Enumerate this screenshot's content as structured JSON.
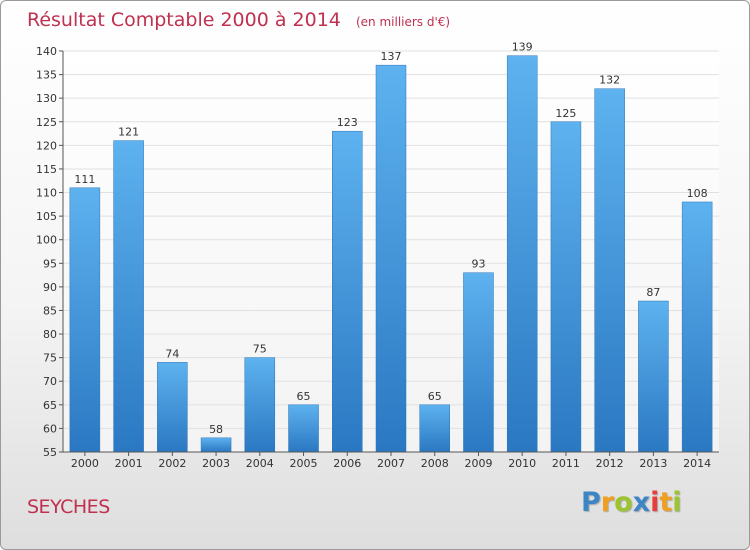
{
  "chart_data": {
    "type": "bar",
    "title": "Résultat Comptable 2000 à 2014",
    "unit": "(en milliers d'€)",
    "categories": [
      "2000",
      "2001",
      "2002",
      "2003",
      "2004",
      "2005",
      "2006",
      "2007",
      "2008",
      "2009",
      "2010",
      "2011",
      "2012",
      "2013",
      "2014"
    ],
    "values": [
      111,
      121,
      74,
      58,
      75,
      65,
      123,
      137,
      65,
      93,
      139,
      125,
      132,
      87,
      108
    ],
    "ylim": [
      55,
      140
    ],
    "ytick_step": 5,
    "grid": true,
    "bar_color": "#3a8fd8"
  },
  "place": "SEYCHES",
  "brand": {
    "letters": [
      "P",
      "r",
      "o",
      "x",
      "i",
      "t",
      "i"
    ],
    "colors": [
      "#3d86c6",
      "#f0a020",
      "#9cc42c",
      "#3d86c6",
      "#e83d3d",
      "#f0a020",
      "#9cc42c"
    ]
  }
}
